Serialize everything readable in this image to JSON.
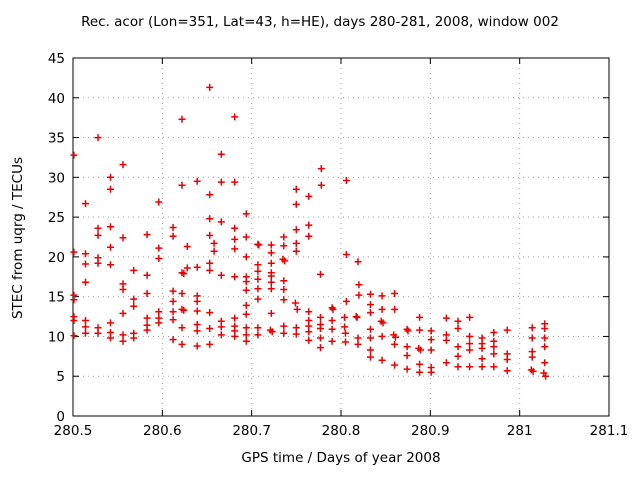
{
  "chart_data": {
    "type": "scatter",
    "title": "Rec. acor (Lon=351, Lat=43, h=HE), days 280-281, 2008, window 002",
    "xlabel": "GPS time / Days of year 2008",
    "ylabel": "STEC from uqrg / TECUs",
    "xlim": [
      280.5,
      281.1
    ],
    "ylim": [
      0,
      45
    ],
    "grid": true,
    "legend_position": "none",
    "x_ticks": [
      {
        "v": 280.5,
        "label": "280.5"
      },
      {
        "v": 280.6,
        "label": "280.6"
      },
      {
        "v": 280.7,
        "label": "280.7"
      },
      {
        "v": 280.8,
        "label": "280.8"
      },
      {
        "v": 280.9,
        "label": "280.9"
      },
      {
        "v": 281.0,
        "label": "281"
      },
      {
        "v": 281.1,
        "label": "281.1"
      }
    ],
    "y_ticks": [
      {
        "v": 0,
        "label": "0"
      },
      {
        "v": 5,
        "label": "5"
      },
      {
        "v": 10,
        "label": "10"
      },
      {
        "v": 15,
        "label": "15"
      },
      {
        "v": 20,
        "label": "20"
      },
      {
        "v": 25,
        "label": "25"
      },
      {
        "v": 30,
        "label": "30"
      },
      {
        "v": 35,
        "label": "35"
      },
      {
        "v": 40,
        "label": "40"
      },
      {
        "v": 45,
        "label": "45"
      }
    ],
    "marker": {
      "shape": "plus",
      "color": "#ee0000",
      "size": 7
    },
    "colors": {
      "frame": "#000000",
      "grid": "#a0a0a0",
      "background": "#ffffff"
    },
    "series": [
      {
        "name": "STEC from uqrg",
        "points": [
          [
            280.501,
            32.8
          ],
          [
            280.501,
            20.6
          ],
          [
            280.501,
            15.2
          ],
          [
            280.501,
            14.6
          ],
          [
            280.501,
            12.5
          ],
          [
            280.501,
            12.0
          ],
          [
            280.501,
            10.1
          ],
          [
            280.514,
            26.7
          ],
          [
            280.514,
            20.4
          ],
          [
            280.514,
            19.1
          ],
          [
            280.514,
            16.8
          ],
          [
            280.514,
            12.0
          ],
          [
            280.514,
            11.2
          ],
          [
            280.514,
            10.4
          ],
          [
            280.528,
            35.0
          ],
          [
            280.528,
            23.6
          ],
          [
            280.528,
            22.7
          ],
          [
            280.528,
            19.9
          ],
          [
            280.528,
            19.2
          ],
          [
            280.528,
            11.1
          ],
          [
            280.528,
            10.4
          ],
          [
            280.542,
            30.0
          ],
          [
            280.542,
            28.5
          ],
          [
            280.542,
            23.8
          ],
          [
            280.542,
            21.2
          ],
          [
            280.542,
            19.0
          ],
          [
            280.542,
            11.7
          ],
          [
            280.542,
            10.5
          ],
          [
            280.542,
            9.8
          ],
          [
            280.556,
            31.6
          ],
          [
            280.556,
            22.4
          ],
          [
            280.556,
            16.6
          ],
          [
            280.556,
            15.9
          ],
          [
            280.556,
            12.9
          ],
          [
            280.556,
            10.2
          ],
          [
            280.556,
            9.4
          ],
          [
            280.568,
            18.3
          ],
          [
            280.568,
            14.7
          ],
          [
            280.568,
            13.8
          ],
          [
            280.568,
            10.4
          ],
          [
            280.568,
            9.8
          ],
          [
            280.583,
            22.8
          ],
          [
            280.583,
            17.7
          ],
          [
            280.583,
            15.4
          ],
          [
            280.583,
            12.3
          ],
          [
            280.583,
            11.4
          ],
          [
            280.583,
            10.8
          ],
          [
            280.596,
            26.9
          ],
          [
            280.596,
            21.1
          ],
          [
            280.596,
            19.8
          ],
          [
            280.596,
            13.1
          ],
          [
            280.596,
            12.3
          ],
          [
            280.596,
            11.7
          ],
          [
            280.612,
            23.7
          ],
          [
            280.612,
            22.6
          ],
          [
            280.612,
            15.7
          ],
          [
            280.612,
            14.4
          ],
          [
            280.612,
            13.1
          ],
          [
            280.612,
            12.1
          ],
          [
            280.612,
            9.6
          ],
          [
            280.622,
            37.3
          ],
          [
            280.622,
            29.0
          ],
          [
            280.622,
            18.0
          ],
          [
            280.624,
            17.9
          ],
          [
            280.622,
            15.4
          ],
          [
            280.622,
            13.4
          ],
          [
            280.624,
            13.3
          ],
          [
            280.622,
            11.1
          ],
          [
            280.622,
            9.0
          ],
          [
            280.628,
            21.3
          ],
          [
            280.628,
            18.6
          ],
          [
            280.639,
            29.5
          ],
          [
            280.639,
            18.7
          ],
          [
            280.639,
            15.1
          ],
          [
            280.639,
            14.4
          ],
          [
            280.639,
            13.2
          ],
          [
            280.639,
            11.5
          ],
          [
            280.639,
            10.7
          ],
          [
            280.639,
            8.8
          ],
          [
            280.653,
            41.3
          ],
          [
            280.653,
            27.8
          ],
          [
            280.653,
            24.8
          ],
          [
            280.653,
            22.7
          ],
          [
            280.653,
            19.2
          ],
          [
            280.653,
            18.3
          ],
          [
            280.653,
            13.0
          ],
          [
            280.653,
            11.0
          ],
          [
            280.653,
            9.0
          ],
          [
            280.658,
            21.7
          ],
          [
            280.658,
            20.7
          ],
          [
            280.666,
            32.9
          ],
          [
            280.666,
            29.4
          ],
          [
            280.666,
            24.4
          ],
          [
            280.666,
            17.7
          ],
          [
            280.666,
            11.9
          ],
          [
            280.666,
            11.2
          ],
          [
            280.666,
            10.2
          ],
          [
            280.681,
            37.6
          ],
          [
            280.681,
            29.4
          ],
          [
            280.681,
            23.6
          ],
          [
            280.681,
            22.2
          ],
          [
            280.681,
            21.0
          ],
          [
            280.681,
            17.5
          ],
          [
            280.681,
            12.3
          ],
          [
            280.681,
            11.3
          ],
          [
            280.681,
            10.7
          ],
          [
            280.681,
            10.0
          ],
          [
            280.694,
            25.4
          ],
          [
            280.694,
            22.5
          ],
          [
            280.694,
            20.0
          ],
          [
            280.694,
            17.5
          ],
          [
            280.694,
            16.9
          ],
          [
            280.694,
            15.8
          ],
          [
            280.694,
            13.9
          ],
          [
            280.694,
            12.8
          ],
          [
            280.694,
            11.1
          ],
          [
            280.694,
            10.2
          ],
          [
            280.694,
            9.4
          ],
          [
            280.707,
            21.6
          ],
          [
            280.708,
            21.5
          ],
          [
            280.707,
            19.0
          ],
          [
            280.707,
            18.2
          ],
          [
            280.707,
            17.2
          ],
          [
            280.707,
            16.0
          ],
          [
            280.707,
            14.7
          ],
          [
            280.707,
            11.1
          ],
          [
            280.707,
            10.2
          ],
          [
            280.722,
            21.5
          ],
          [
            280.722,
            20.5
          ],
          [
            280.722,
            19.2
          ],
          [
            280.722,
            18.0
          ],
          [
            280.722,
            17.6
          ],
          [
            280.722,
            16.8
          ],
          [
            280.722,
            16.0
          ],
          [
            280.722,
            12.9
          ],
          [
            280.721,
            10.8
          ],
          [
            280.723,
            10.6
          ],
          [
            280.736,
            22.5
          ],
          [
            280.736,
            21.4
          ],
          [
            280.735,
            19.7
          ],
          [
            280.737,
            19.5
          ],
          [
            280.736,
            17.0
          ],
          [
            280.736,
            15.9
          ],
          [
            280.736,
            14.6
          ],
          [
            280.736,
            11.3
          ],
          [
            280.736,
            10.4
          ],
          [
            280.75,
            28.5
          ],
          [
            280.75,
            26.6
          ],
          [
            280.75,
            23.4
          ],
          [
            280.75,
            21.7
          ],
          [
            280.75,
            20.7
          ],
          [
            280.749,
            14.2
          ],
          [
            280.751,
            13.4
          ],
          [
            280.75,
            11.1
          ],
          [
            280.75,
            10.3
          ],
          [
            280.764,
            27.6
          ],
          [
            280.764,
            24.0
          ],
          [
            280.764,
            22.6
          ],
          [
            280.764,
            13.1
          ],
          [
            280.764,
            12.0
          ],
          [
            280.764,
            11.3
          ],
          [
            280.764,
            10.6
          ],
          [
            280.764,
            9.5
          ],
          [
            280.778,
            31.1
          ],
          [
            280.778,
            29.0
          ],
          [
            280.777,
            17.8
          ],
          [
            280.777,
            12.4
          ],
          [
            280.777,
            11.5
          ],
          [
            280.777,
            11.0
          ],
          [
            280.777,
            9.8
          ],
          [
            280.777,
            8.6
          ],
          [
            280.79,
            13.6
          ],
          [
            280.791,
            13.4
          ],
          [
            280.79,
            12.0
          ],
          [
            280.79,
            10.9
          ],
          [
            280.79,
            9.4
          ],
          [
            280.806,
            29.6
          ],
          [
            280.806,
            20.3
          ],
          [
            280.806,
            14.4
          ],
          [
            280.804,
            12.4
          ],
          [
            280.804,
            11.2
          ],
          [
            280.805,
            10.4
          ],
          [
            280.805,
            9.3
          ],
          [
            280.819,
            19.4
          ],
          [
            280.82,
            16.5
          ],
          [
            280.82,
            15.2
          ],
          [
            280.817,
            12.5
          ],
          [
            280.818,
            12.4
          ],
          [
            280.819,
            9.8
          ],
          [
            280.819,
            9.0
          ],
          [
            280.833,
            15.3
          ],
          [
            280.833,
            14.0
          ],
          [
            280.833,
            13.0
          ],
          [
            280.833,
            10.9
          ],
          [
            280.833,
            9.8
          ],
          [
            280.833,
            8.3
          ],
          [
            280.833,
            7.4
          ],
          [
            280.846,
            15.1
          ],
          [
            280.846,
            13.4
          ],
          [
            280.845,
            11.9
          ],
          [
            280.847,
            11.7
          ],
          [
            280.846,
            10.0
          ],
          [
            280.846,
            7.0
          ],
          [
            280.86,
            15.4
          ],
          [
            280.86,
            13.4
          ],
          [
            280.859,
            10.2
          ],
          [
            280.861,
            9.9
          ],
          [
            280.86,
            9.0
          ],
          [
            280.86,
            6.4
          ],
          [
            280.874,
            10.9
          ],
          [
            280.875,
            10.7
          ],
          [
            280.874,
            8.7
          ],
          [
            280.874,
            7.6
          ],
          [
            280.874,
            5.9
          ],
          [
            280.888,
            12.4
          ],
          [
            280.888,
            10.8
          ],
          [
            280.887,
            8.5
          ],
          [
            280.889,
            8.3
          ],
          [
            280.888,
            6.5
          ],
          [
            280.888,
            5.5
          ],
          [
            280.901,
            10.7
          ],
          [
            280.901,
            9.6
          ],
          [
            280.901,
            8.3
          ],
          [
            280.901,
            6.1
          ],
          [
            280.901,
            5.5
          ],
          [
            280.918,
            12.3
          ],
          [
            280.918,
            10.2
          ],
          [
            280.918,
            9.5
          ],
          [
            280.918,
            6.7
          ],
          [
            280.931,
            11.9
          ],
          [
            280.931,
            11.0
          ],
          [
            280.931,
            8.7
          ],
          [
            280.931,
            7.5
          ],
          [
            280.931,
            6.2
          ],
          [
            280.944,
            12.4
          ],
          [
            280.944,
            10.0
          ],
          [
            280.944,
            9.1
          ],
          [
            280.944,
            8.3
          ],
          [
            280.944,
            6.2
          ],
          [
            280.958,
            9.8
          ],
          [
            280.958,
            9.1
          ],
          [
            280.958,
            8.5
          ],
          [
            280.958,
            7.2
          ],
          [
            280.958,
            6.2
          ],
          [
            280.971,
            10.5
          ],
          [
            280.971,
            9.4
          ],
          [
            280.971,
            8.7
          ],
          [
            280.971,
            7.8
          ],
          [
            280.971,
            6.2
          ],
          [
            280.986,
            10.8
          ],
          [
            280.986,
            7.8
          ],
          [
            280.986,
            7.1
          ],
          [
            280.986,
            5.7
          ],
          [
            281.014,
            11.1
          ],
          [
            281.014,
            9.8
          ],
          [
            281.014,
            8.1
          ],
          [
            281.014,
            7.4
          ],
          [
            281.013,
            5.8
          ],
          [
            281.015,
            5.6
          ],
          [
            281.028,
            11.6
          ],
          [
            281.028,
            11.0
          ],
          [
            281.028,
            9.8
          ],
          [
            281.028,
            8.7
          ],
          [
            281.028,
            6.7
          ],
          [
            281.027,
            5.4
          ],
          [
            281.029,
            5.0
          ]
        ]
      }
    ]
  }
}
